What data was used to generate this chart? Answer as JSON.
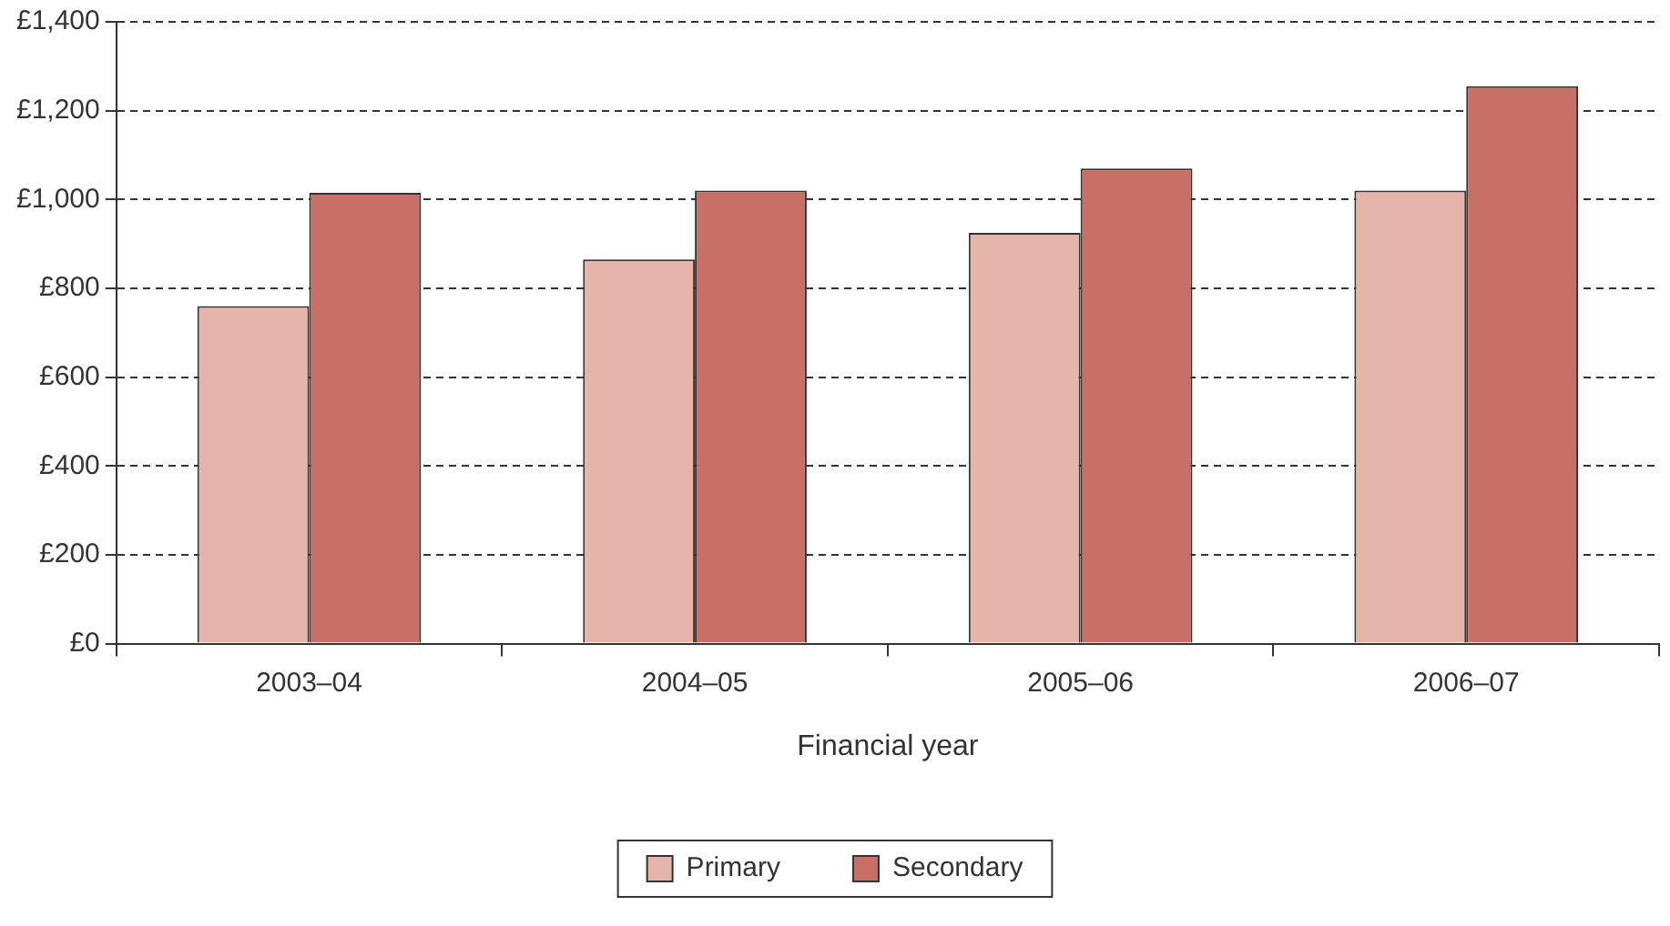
{
  "chart_data": {
    "type": "bar",
    "xlabel": "Financial year",
    "categories": [
      "2003–04",
      "2004–05",
      "2005–06",
      "2006–07"
    ],
    "series": [
      {
        "name": "Primary",
        "color": "#e6b5aa",
        "values": [
          760,
          865,
          925,
          1020
        ]
      },
      {
        "name": "Secondary",
        "color": "#c87065",
        "values": [
          1015,
          1020,
          1070,
          1255
        ]
      }
    ],
    "ylim": [
      0,
      1400
    ],
    "yticks": [
      {
        "value": 0,
        "label": "£0"
      },
      {
        "value": 200,
        "label": "£200"
      },
      {
        "value": 400,
        "label": "£400"
      },
      {
        "value": 600,
        "label": "£600"
      },
      {
        "value": 800,
        "label": "£800"
      },
      {
        "value": 1000,
        "label": "£1,000"
      },
      {
        "value": 1200,
        "label": "£1,200"
      },
      {
        "value": 1400,
        "label": "£1,400"
      }
    ],
    "grid": "y",
    "legend": "bottom"
  }
}
